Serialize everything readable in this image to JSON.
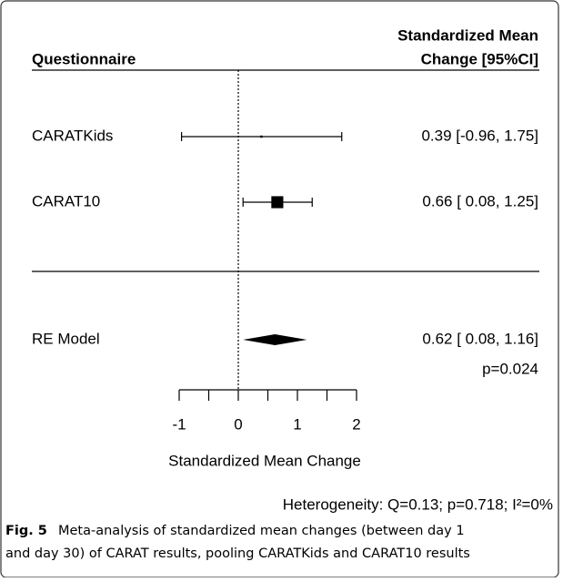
{
  "chart_data": {
    "type": "forest",
    "column_headers": [
      "Questionnaire",
      "Standardized Mean",
      "Change [95%CI]"
    ],
    "studies": [
      {
        "name": "CARATKids",
        "estimate": 0.39,
        "lower": -0.96,
        "upper": 1.75,
        "label": "0.39 [-0.96, 1.75]"
      },
      {
        "name": "CARAT10",
        "estimate": 0.66,
        "lower": 0.08,
        "upper": 1.25,
        "label": "0.66 [ 0.08, 1.25]"
      }
    ],
    "summary": {
      "name": "RE Model",
      "estimate": 0.62,
      "lower": 0.08,
      "upper": 1.16,
      "label": "0.62 [ 0.08, 1.16]",
      "p_label": "p=0.024"
    },
    "xlabel": "Standardized Mean Change",
    "xlim": [
      -1,
      2
    ],
    "xticks": [
      -1,
      0,
      1,
      2
    ],
    "xminorticks": [
      -0.5,
      0.5,
      1.5
    ],
    "reference_line": 0,
    "heterogeneity": "Heterogeneity: Q=0.13; p=0.718; I²=0%",
    "caption": {
      "label": "Fig. 5",
      "text": "Meta-analysis of standardized mean changes (between day 1",
      "text2": "and day 30) of CARAT results, pooling CARATKids and CARAT10 results"
    }
  }
}
